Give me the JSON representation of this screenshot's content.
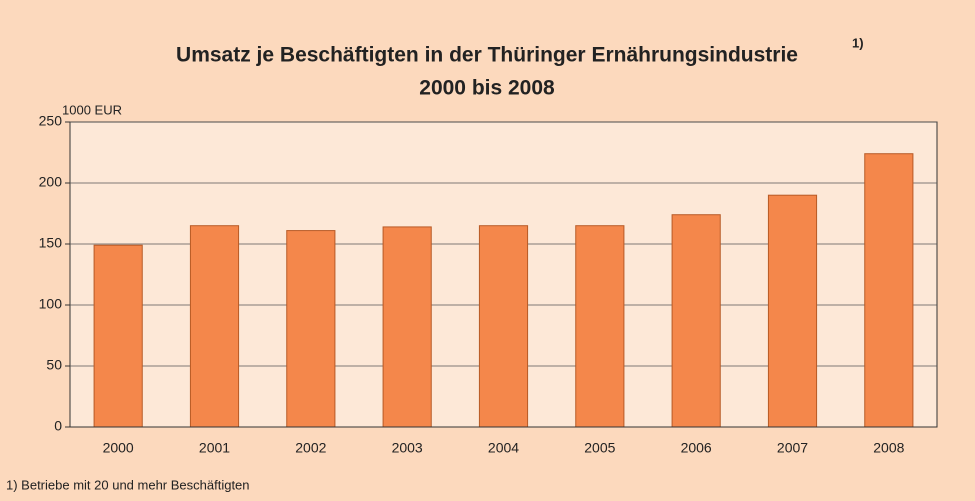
{
  "chart_data": {
    "type": "bar",
    "title": "Umsatz je Beschäftigten in der Thüringer Ernährungsindustrie",
    "title_note": "1)",
    "subtitle": "2000 bis 2008",
    "y_label": "1000 EUR",
    "footnote": "1) Betriebe mit 20 und mehr Beschäftigten",
    "categories": [
      "2000",
      "2001",
      "2002",
      "2003",
      "2004",
      "2005",
      "2006",
      "2007",
      "2008"
    ],
    "values": [
      149,
      165,
      161,
      164,
      165,
      165,
      174,
      190,
      224
    ],
    "color": "#f4874b",
    "ylim": [
      0,
      250
    ],
    "yticks": [
      0,
      50,
      100,
      150,
      200,
      250
    ],
    "grid": true
  }
}
